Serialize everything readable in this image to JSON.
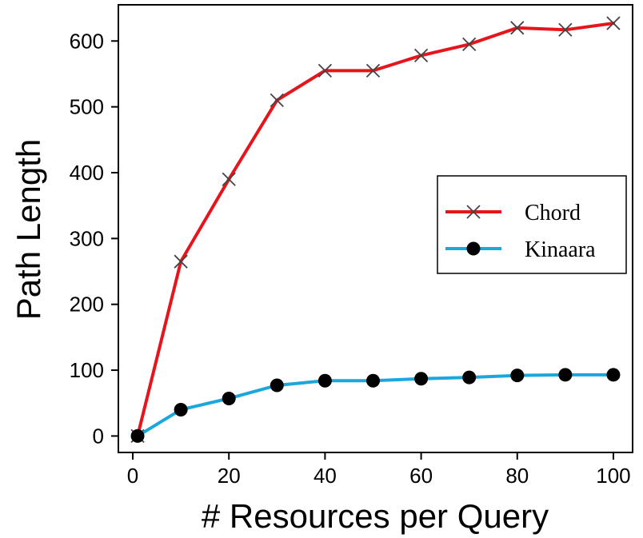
{
  "chart_data": {
    "type": "line",
    "title": "",
    "xlabel": "# Resources per Query",
    "ylabel": "Path Length",
    "xlim": [
      -3,
      104
    ],
    "ylim": [
      -25,
      655
    ],
    "xticks": [
      0,
      20,
      40,
      60,
      80,
      100
    ],
    "yticks": [
      0,
      100,
      200,
      300,
      400,
      500,
      600
    ],
    "grid": false,
    "legend_position": "center-right",
    "x": [
      1,
      10,
      20,
      30,
      40,
      50,
      60,
      70,
      80,
      90,
      100
    ],
    "series": [
      {
        "name": "Chord",
        "marker": "x",
        "color": "#e8141b",
        "marker_color": "#444444",
        "values": [
          0,
          265,
          390,
          510,
          555,
          555,
          578,
          595,
          620,
          617,
          627
        ]
      },
      {
        "name": "Kinaara",
        "marker": "circle",
        "color": "#1aa7dc",
        "marker_color": "#000000",
        "values": [
          0,
          40,
          57,
          77,
          84,
          84,
          87,
          89,
          92,
          93,
          93
        ]
      }
    ]
  }
}
